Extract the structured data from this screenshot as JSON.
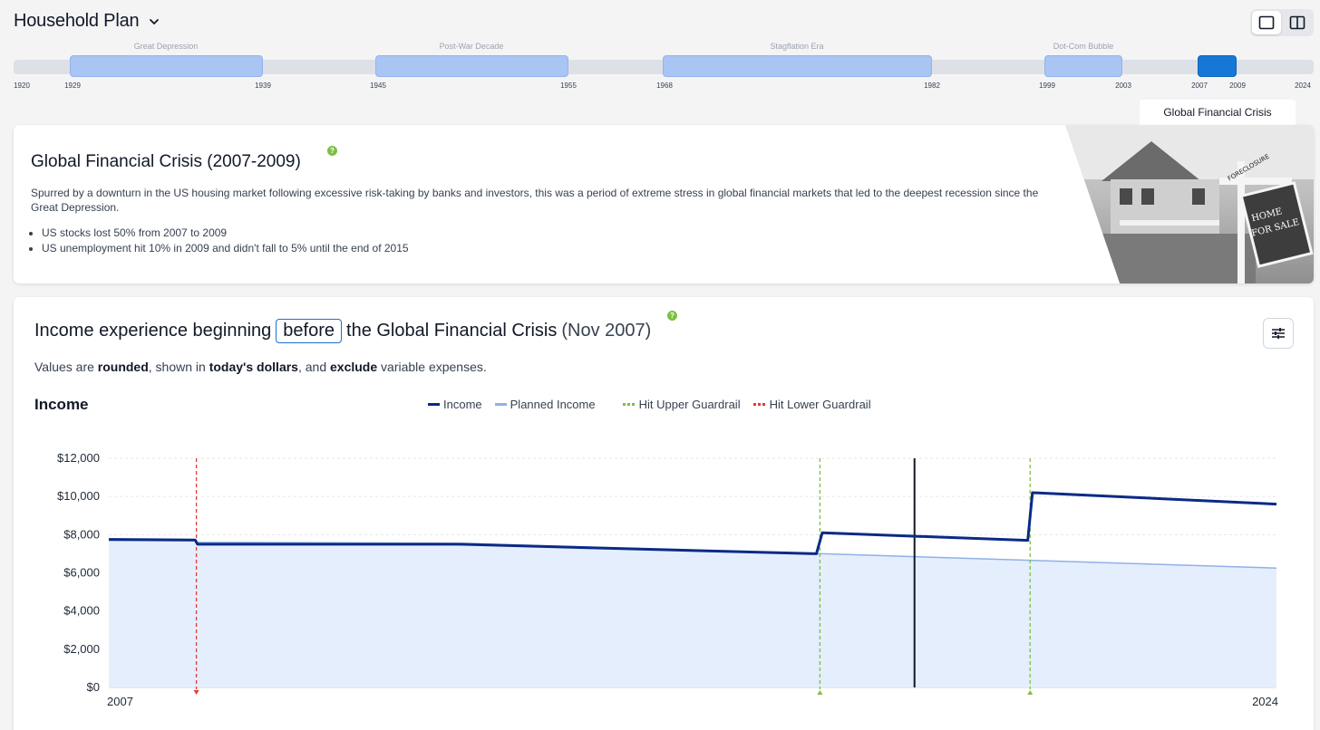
{
  "header": {
    "title": "Household Plan",
    "chevron_icon": "chevron-down-icon"
  },
  "view_toggle": [
    {
      "icon": "single-pane-icon",
      "active": true
    },
    {
      "icon": "split-pane-icon",
      "active": false
    }
  ],
  "timeline": {
    "eras": [
      {
        "label": "Great Depression",
        "start": "1929",
        "end": "1939"
      },
      {
        "label": "Post-War Decade",
        "start": "1945",
        "end": "1955"
      },
      {
        "label": "Stagflation Era",
        "start": "1968",
        "end": "1982"
      },
      {
        "label": "Dot-Com Bubble",
        "start": "1999",
        "end": "2003"
      },
      {
        "label": "",
        "start": "2007",
        "end": "2009"
      }
    ],
    "bounds": [
      "1920",
      "2024"
    ],
    "active_tab": "Global Financial Crisis"
  },
  "crisis": {
    "title": "Global Financial Crisis (2007-2009)",
    "help": "?",
    "description": "Spurred by a downturn in the US housing market following excessive risk-taking by banks and investors, this was a period of extreme stress in global financial markets that led to the deepest recession since the Great Depression.",
    "bullets": [
      "US stocks lost 50% from 2007 to 2009",
      "US unemployment hit 10% in 2009 and didn't fall to 5% until the end of 2015"
    ],
    "image_label": "foreclosure-house-photo",
    "sign_text": [
      "FORECLOSURE",
      "HOME",
      "FOR SALE"
    ]
  },
  "experience": {
    "prefix": "Income experience beginning",
    "selector": "before",
    "suffix": "the Global Financial Crisis",
    "date": "(Nov 2007)",
    "help": "?",
    "settings_icon": "sliders-icon",
    "note": {
      "t1": "Values are ",
      "b1": "rounded",
      "t2": ", shown in ",
      "b2": "today's dollars",
      "t3": ", and ",
      "b3": "exclude",
      "t4": " variable expenses."
    }
  },
  "chart_title": "Income",
  "legend": {
    "income": "Income",
    "planned": "Planned Income",
    "upper": "Hit Upper Guardrail",
    "lower": "Hit Lower Guardrail"
  },
  "colors": {
    "income": "#0b2a86",
    "planned": "#8fb1e8",
    "planned_fill": "#e5eefc",
    "upper": "#7bc043",
    "lower": "#e03b3b",
    "accent": "#1677d6"
  },
  "chart_data": {
    "type": "line",
    "x_labels": [
      "2007",
      "2024"
    ],
    "ylim": [
      0,
      12000
    ],
    "y_ticks": [
      "$0",
      "$2,000",
      "$4,000",
      "$6,000",
      "$8,000",
      "$10,000",
      "$12,000"
    ],
    "grid": true,
    "series": [
      {
        "name": "Income",
        "points": [
          [
            0,
            7750
          ],
          [
            0.074,
            7720
          ],
          [
            0.076,
            7500
          ],
          [
            0.3,
            7500
          ],
          [
            0.606,
            7000
          ],
          [
            0.611,
            8100
          ],
          [
            0.787,
            7700
          ],
          [
            0.791,
            10200
          ],
          [
            1,
            9600
          ]
        ]
      },
      {
        "name": "Planned Income",
        "points": [
          [
            0,
            7700
          ],
          [
            0.074,
            7680
          ],
          [
            0.076,
            7600
          ],
          [
            0.3,
            7550
          ],
          [
            0.606,
            7000
          ],
          [
            0.611,
            7000
          ],
          [
            1,
            6250
          ]
        ]
      }
    ],
    "lower_guardrail_x": [
      0.075
    ],
    "upper_guardrail_x": [
      0.609,
      0.789
    ],
    "marker_x": 0.69
  }
}
